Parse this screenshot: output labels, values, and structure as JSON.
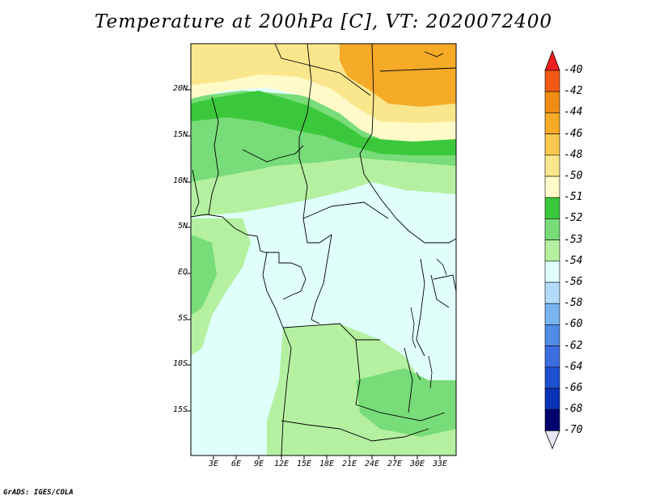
{
  "title": "Temperature at 200hPa [C], VT: 2020072400",
  "credit": "GrADS: IGES/COLA",
  "lat_labels": [
    "20N",
    "15N",
    "10N",
    "5N",
    "EQ",
    "5S",
    "10S",
    "15S"
  ],
  "lon_labels": [
    "3E",
    "6E",
    "9E",
    "12E",
    "15E",
    "18E",
    "21E",
    "24E",
    "27E",
    "30E",
    "33E"
  ],
  "colorbar": {
    "labels": [
      "-40",
      "-42",
      "-44",
      "-46",
      "-48",
      "-50",
      "-51",
      "-52",
      "-53",
      "-54",
      "-56",
      "-58",
      "-60",
      "-62",
      "-64",
      "-66",
      "-68",
      "-70"
    ],
    "colors": [
      "#f01e1e",
      "#f05a14",
      "#f08c14",
      "#f5aa28",
      "#fac850",
      "#fae68c",
      "#fffac8",
      "#3cc83c",
      "#78dc78",
      "#b4f0a0",
      "#e0fffa",
      "#b4dcfa",
      "#78b4f0",
      "#508ce6",
      "#3c6ee1",
      "#1e50d2",
      "#0a32b4",
      "#00006e",
      "#e6e6f5"
    ]
  }
}
